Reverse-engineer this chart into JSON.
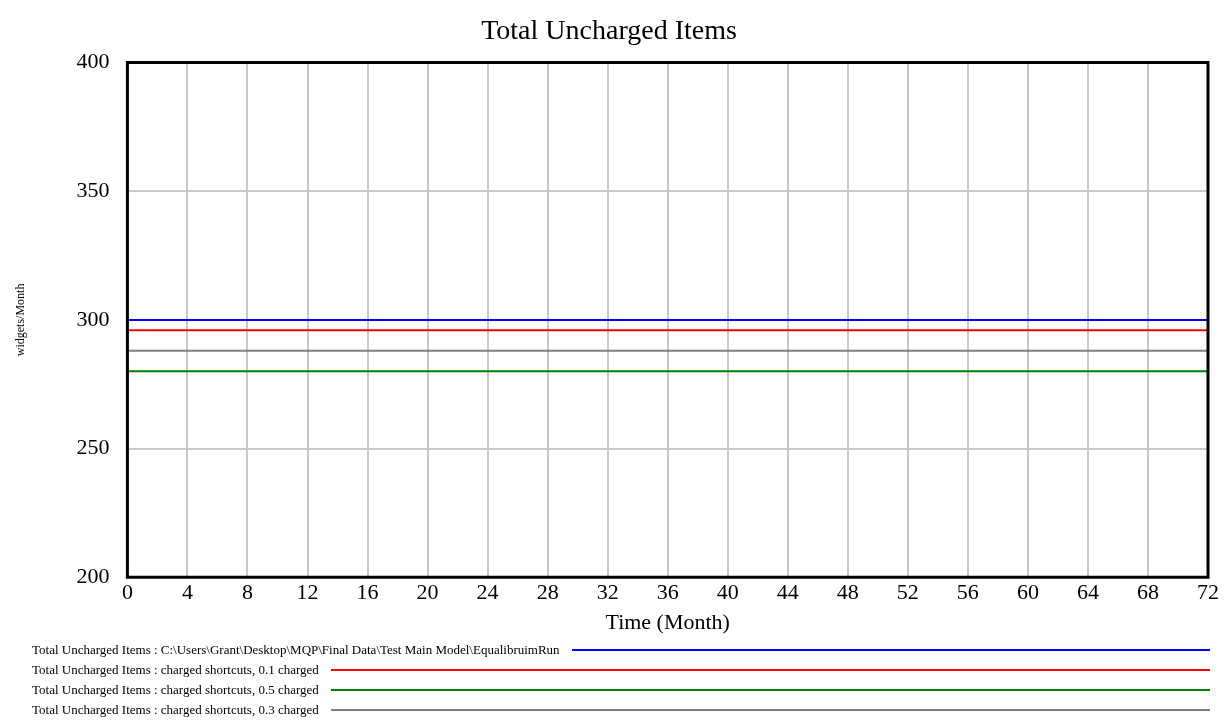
{
  "chart_data": {
    "type": "line",
    "title": "Total Uncharged Items",
    "xlabel": "Time (Month)",
    "ylabel": "widgets/Month",
    "x": [
      0,
      72
    ],
    "series": [
      {
        "name": "Total Uncharged Items : C:\\Users\\Grant\\Desktop\\MQP\\Final Data\\Test Main Model\\EqualibruimRun",
        "color": "#0000ff",
        "values": [
          300,
          300
        ]
      },
      {
        "name": "Total Uncharged Items : charged shortcuts, 0.1 charged",
        "color": "#ff0000",
        "values": [
          296,
          296
        ]
      },
      {
        "name": "Total Uncharged Items : charged shortcuts, 0.5 charged",
        "color": "#008000",
        "values": [
          280,
          280
        ]
      },
      {
        "name": "Total Uncharged Items : charged shortcuts, 0.3 charged",
        "color": "#808080",
        "values": [
          288,
          288
        ]
      }
    ],
    "xlim": [
      0,
      72
    ],
    "xticks": [
      0,
      4,
      8,
      12,
      16,
      20,
      24,
      28,
      32,
      36,
      40,
      44,
      48,
      52,
      56,
      60,
      64,
      68,
      72
    ],
    "ylim": [
      200,
      400
    ],
    "yticks": [
      200,
      250,
      300,
      350,
      400
    ],
    "grid": true,
    "legend": "bottom",
    "marker": "none",
    "line_style": "solid"
  }
}
